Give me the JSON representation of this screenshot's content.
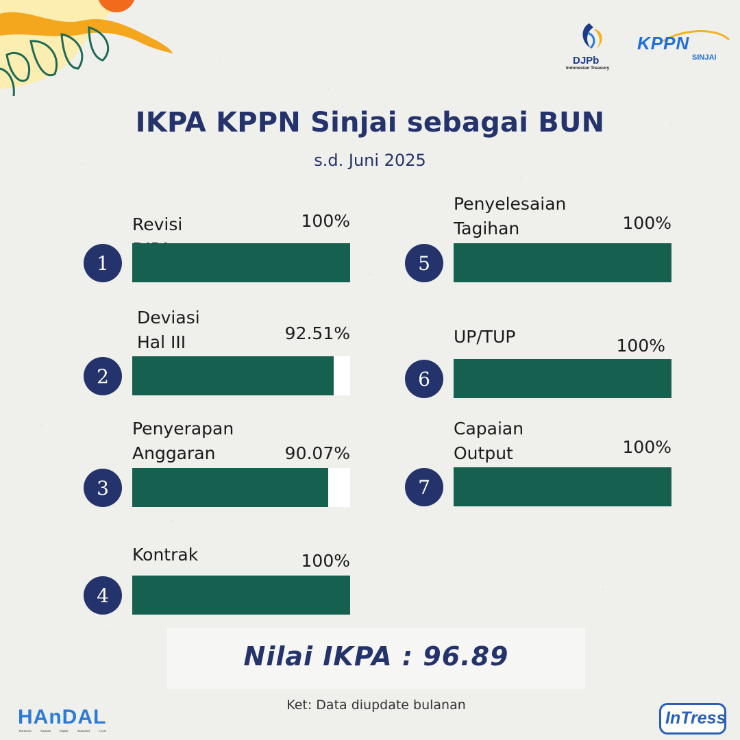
{
  "header": {
    "title": "IKPA KPPN Sinjai sebagai BUN",
    "subtitle": "s.d. Juni 2025"
  },
  "logos": {
    "djpb": {
      "name": "DJPb",
      "tagline": "Indonesian Treasury"
    },
    "kppn": {
      "name": "KPPN",
      "sub": "SINJAI"
    },
    "handal": {
      "name": "HAnDAL",
      "tagline": "Harmonis Amanah Digital Akuntabel Loyal"
    },
    "intress": {
      "name": "InTress"
    }
  },
  "chart_data": {
    "type": "bar",
    "orientation": "horizontal",
    "ylim": [
      0,
      100
    ],
    "categories": [
      "Revisi DIPA",
      "Deviasi Hal III DIPA",
      "Penyerapan Anggaran",
      "Kontrak",
      "Penyelesaian Tagihan",
      "UP/TUP",
      "Capaian Output"
    ],
    "values": [
      100,
      92.51,
      90.07,
      100,
      100,
      100,
      100
    ],
    "items": [
      {
        "number": "1",
        "label": "Revisi DIPA",
        "value": 100,
        "value_label": "100%"
      },
      {
        "number": "2",
        "label": "Deviasi Hal III\nDIPA",
        "value": 92.51,
        "value_label": "92.51%"
      },
      {
        "number": "3",
        "label": "Penyerapan\nAnggaran",
        "value": 90.07,
        "value_label": "90.07%"
      },
      {
        "number": "4",
        "label": "Kontrak",
        "value": 100,
        "value_label": "100%"
      },
      {
        "number": "5",
        "label": "Penyelesaian\nTagihan",
        "value": 100,
        "value_label": "100%"
      },
      {
        "number": "6",
        "label": "UP/TUP",
        "value": 100,
        "value_label": "100%"
      },
      {
        "number": "7",
        "label": "Capaian\nOutput",
        "value": 100,
        "value_label": "100%"
      }
    ],
    "colors": {
      "bar": "#16604f",
      "track": "#ffffff",
      "badge": "#24336b"
    }
  },
  "result": {
    "text": "Nilai IKPA : 96.89"
  },
  "footer": {
    "note": "Ket: Data diupdate bulanan"
  }
}
